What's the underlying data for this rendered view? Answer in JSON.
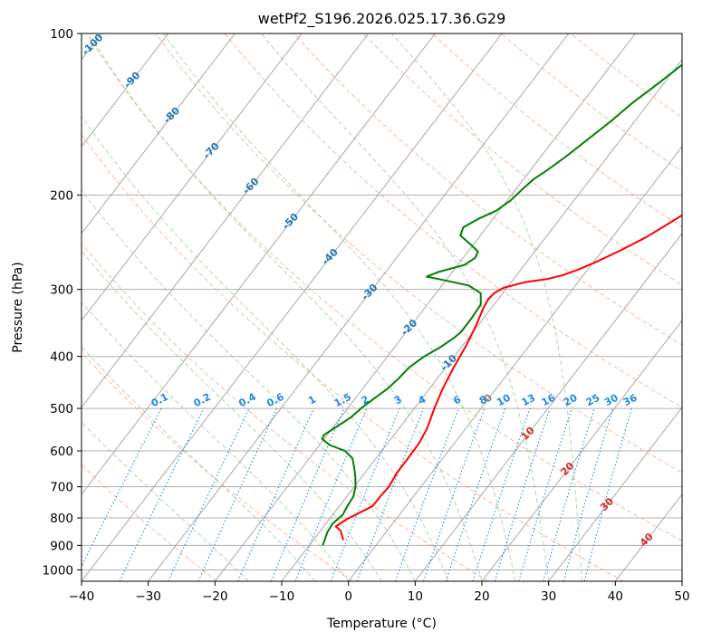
{
  "chart_data": {
    "type": "line",
    "title": "wetPf2_S196.2026.025.17.36.G29",
    "xlabel": "Temperature (°C)",
    "ylabel": "Pressure (hPa)",
    "xlim": [
      -40,
      50
    ],
    "ylim": [
      1050,
      100
    ],
    "y_scale": "log",
    "grid": true,
    "x_ticks": [
      -40,
      -30,
      -20,
      -10,
      0,
      10,
      20,
      30,
      40,
      50
    ],
    "y_ticks": [
      100,
      200,
      300,
      400,
      500,
      600,
      700,
      800,
      900,
      1000
    ],
    "x_tick_labels": [
      "−40",
      "−30",
      "−20",
      "−10",
      "0",
      "10",
      "20",
      "30",
      "40",
      "50"
    ],
    "y_tick_labels": [
      "100",
      "200",
      "300",
      "400",
      "500",
      "600",
      "700",
      "800",
      "900",
      "1000"
    ],
    "skew_lines_temps": [
      -120,
      -110,
      -100,
      -90,
      -80,
      -70,
      -60,
      -50,
      -40,
      -30,
      -20,
      -10,
      0,
      10,
      20,
      30,
      40,
      50
    ],
    "dry_adiabat_thetas": [
      230,
      250,
      270,
      290,
      310,
      330,
      350,
      370,
      390,
      410,
      430,
      450,
      470
    ],
    "moist_adiabat_temps": [
      -15,
      -5,
      0,
      5,
      10,
      15,
      20,
      25,
      30,
      35
    ],
    "mixing_ratio_labels": [
      "0.1",
      "0.2",
      "0.4",
      "0.6",
      "1",
      "1.5",
      "2",
      "3",
      "4",
      "6",
      "8",
      "10",
      "13",
      "16",
      "20",
      "25",
      "30",
      "36"
    ],
    "isotherm_labels": [
      {
        "text": "-100",
        "color": "#1f77b4"
      },
      {
        "text": "-90",
        "color": "#1f77b4"
      },
      {
        "text": "-80",
        "color": "#1f77b4"
      },
      {
        "text": "-70",
        "color": "#1f77b4"
      },
      {
        "text": "-60",
        "color": "#1f77b4"
      },
      {
        "text": "-50",
        "color": "#1f77b4"
      },
      {
        "text": "-40",
        "color": "#1f77b4"
      },
      {
        "text": "-30",
        "color": "#1f77b4"
      },
      {
        "text": "-20",
        "color": "#1f77b4"
      },
      {
        "text": "-10",
        "color": "#1f77b4"
      },
      {
        "text": "0",
        "color": "#7f7f7f"
      },
      {
        "text": "10",
        "color": "#d62728"
      },
      {
        "text": "20",
        "color": "#d62728"
      },
      {
        "text": "30",
        "color": "#d62728"
      },
      {
        "text": "40",
        "color": "#d62728"
      }
    ],
    "series": [
      {
        "color": "#ff0000",
        "points": [
          [
            -5.5,
            880
          ],
          [
            -7.0,
            845
          ],
          [
            -8.2,
            830
          ],
          [
            -7.4,
            805
          ],
          [
            -5.0,
            760
          ],
          [
            -5.0,
            730
          ],
          [
            -4.8,
            700
          ],
          [
            -5.2,
            660
          ],
          [
            -5.2,
            620
          ],
          [
            -5.3,
            580
          ],
          [
            -5.8,
            545
          ],
          [
            -7.0,
            500
          ],
          [
            -8.0,
            460
          ],
          [
            -8.8,
            420
          ],
          [
            -9.5,
            380
          ],
          [
            -10.3,
            350
          ],
          [
            -11.2,
            325
          ],
          [
            -11.5,
            312
          ],
          [
            -11.3,
            305
          ],
          [
            -10.5,
            298
          ],
          [
            -8.0,
            291
          ],
          [
            -5.0,
            287
          ],
          [
            -3.0,
            282
          ],
          [
            -1.3,
            275
          ],
          [
            0.5,
            266
          ],
          [
            2.5,
            255
          ],
          [
            5.0,
            240
          ],
          [
            7.0,
            225
          ],
          [
            9.0,
            210
          ],
          [
            11.0,
            195
          ],
          [
            13.5,
            180
          ],
          [
            16.0,
            165
          ],
          [
            17.5,
            155
          ],
          [
            20.0,
            140
          ],
          [
            23.0,
            128
          ],
          [
            25.0,
            117
          ],
          [
            27.0,
            107
          ],
          [
            28.3,
            100
          ]
        ]
      },
      {
        "color": "#008000",
        "points": [
          [
            -8.0,
            900
          ],
          [
            -8.3,
            880
          ],
          [
            -8.8,
            850
          ],
          [
            -9.0,
            820
          ],
          [
            -8.5,
            790
          ],
          [
            -8.8,
            760
          ],
          [
            -9.0,
            730
          ],
          [
            -9.8,
            700
          ],
          [
            -11.0,
            670
          ],
          [
            -12.2,
            645
          ],
          [
            -13.5,
            620
          ],
          [
            -15.5,
            600
          ],
          [
            -18.5,
            585
          ],
          [
            -20.3,
            570
          ],
          [
            -20.5,
            560
          ],
          [
            -19.5,
            540
          ],
          [
            -18.5,
            520
          ],
          [
            -18.0,
            500
          ],
          [
            -17.2,
            480
          ],
          [
            -16.3,
            460
          ],
          [
            -15.8,
            440
          ],
          [
            -15.5,
            420
          ],
          [
            -14.5,
            400
          ],
          [
            -13.2,
            385
          ],
          [
            -12.2,
            370
          ],
          [
            -11.8,
            360
          ],
          [
            -11.8,
            340
          ],
          [
            -12.0,
            320
          ],
          [
            -13.3,
            305
          ],
          [
            -16.0,
            295
          ],
          [
            -20.5,
            288
          ],
          [
            -23.3,
            284
          ],
          [
            -22.0,
            278
          ],
          [
            -19.0,
            270
          ],
          [
            -18.2,
            262
          ],
          [
            -18.5,
            255
          ],
          [
            -20.5,
            247
          ],
          [
            -23.0,
            238
          ],
          [
            -23.5,
            230
          ],
          [
            -22.3,
            222
          ],
          [
            -20.5,
            214
          ],
          [
            -19.5,
            205
          ],
          [
            -19.0,
            195
          ],
          [
            -18.5,
            187
          ],
          [
            -17.5,
            180
          ],
          [
            -16.3,
            170
          ],
          [
            -15.0,
            158
          ],
          [
            -13.5,
            145
          ],
          [
            -12.5,
            135
          ],
          [
            -11.0,
            125
          ],
          [
            -9.5,
            115
          ],
          [
            -8.0,
            106
          ],
          [
            -7.3,
            100
          ]
        ]
      }
    ]
  }
}
